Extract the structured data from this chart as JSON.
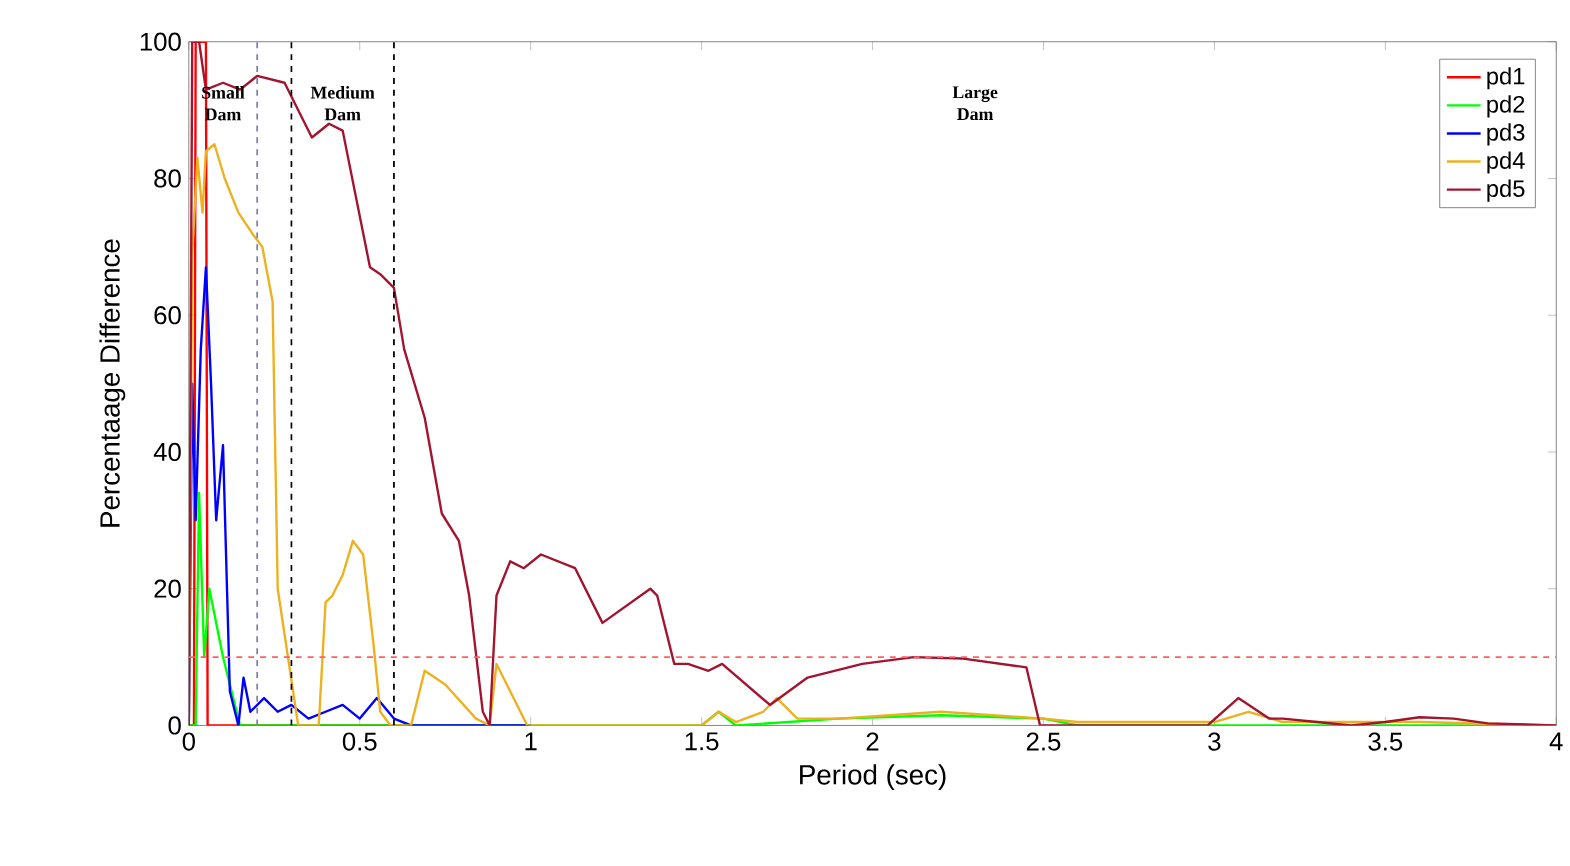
{
  "chart_data": {
    "type": "line",
    "xlabel": "Period (sec)",
    "ylabel": "Percentaage Difference",
    "xlim": [
      0,
      4
    ],
    "ylim": [
      0,
      100
    ],
    "xticks": [
      0,
      0.5,
      1,
      1.5,
      2,
      2.5,
      3,
      3.5,
      4
    ],
    "yticks": [
      0,
      20,
      40,
      60,
      80,
      100
    ],
    "legend": "top right",
    "marker": "none",
    "line_style": "solid",
    "grid": false,
    "series": [
      {
        "name": "pd1",
        "color": "#ff0000",
        "x": [
          0,
          0.015,
          0.02,
          0.05,
          0.055,
          0.1,
          1
        ],
        "values": [
          0,
          0,
          100,
          100,
          0,
          0,
          0
        ]
      },
      {
        "name": "pd2",
        "color": "#00ff00",
        "x": [
          0,
          0.02,
          0.03,
          0.045,
          0.06,
          0.1,
          0.15,
          0.3,
          0.6,
          1.5,
          1.55,
          1.6,
          1.9,
          2.2,
          2.5,
          2.6,
          4
        ],
        "values": [
          0,
          0,
          34,
          10,
          20,
          10,
          0,
          0,
          0,
          0,
          2,
          0,
          1,
          1.5,
          1,
          0,
          0
        ]
      },
      {
        "name": "pd3",
        "color": "#0000ff",
        "x": [
          0,
          0.01,
          0.02,
          0.035,
          0.05,
          0.065,
          0.08,
          0.1,
          0.12,
          0.145,
          0.16,
          0.18,
          0.22,
          0.26,
          0.3,
          0.35,
          0.4,
          0.45,
          0.5,
          0.55,
          0.6,
          0.65,
          1
        ],
        "values": [
          0,
          50,
          30,
          55,
          67,
          50,
          30,
          41,
          5,
          0,
          7,
          2,
          4,
          2,
          3,
          1,
          2,
          3,
          1,
          4,
          1,
          0,
          0
        ]
      },
      {
        "name": "pd4",
        "color": "#edb120",
        "x": [
          0,
          0.01,
          0.025,
          0.04,
          0.05,
          0.075,
          0.105,
          0.145,
          0.185,
          0.215,
          0.245,
          0.26,
          0.32,
          0.38,
          0.4,
          0.42,
          0.45,
          0.48,
          0.51,
          0.54,
          0.56,
          0.59,
          0.65,
          0.69,
          0.75,
          0.84,
          0.88,
          0.9,
          0.99,
          1.5,
          1.55,
          1.6,
          1.68,
          1.72,
          1.78,
          1.9,
          2.2,
          2.5,
          2.6,
          3.0,
          3.1,
          3.2,
          3.6,
          4
        ],
        "values": [
          0,
          69,
          83,
          75,
          84,
          85,
          80,
          75,
          72,
          70,
          62,
          20,
          0,
          0,
          18,
          19,
          22,
          27,
          25,
          12,
          2,
          0,
          0,
          8,
          6,
          1,
          0,
          9,
          0,
          0,
          2,
          0.5,
          2,
          4,
          1,
          1,
          2,
          1,
          0.5,
          0.5,
          2,
          0.5,
          0.5,
          0
        ]
      },
      {
        "name": "pd5",
        "color": "#a2142f",
        "x": [
          0,
          0.01,
          0.03,
          0.05,
          0.1,
          0.15,
          0.2,
          0.28,
          0.36,
          0.41,
          0.45,
          0.53,
          0.56,
          0.6,
          0.63,
          0.69,
          0.74,
          0.79,
          0.82,
          0.86,
          0.88,
          0.9,
          0.94,
          0.98,
          1.03,
          1.13,
          1.21,
          1.35,
          1.37,
          1.42,
          1.46,
          1.52,
          1.56,
          1.7,
          1.81,
          1.97,
          2.12,
          2.26,
          2.45,
          2.49,
          2.98,
          3.07,
          3.16,
          3.2,
          3.3,
          3.4,
          3.5,
          3.6,
          3.7,
          3.8,
          4
        ],
        "values": [
          0,
          100,
          100,
          93,
          94,
          93,
          95,
          94,
          86,
          88,
          87,
          67,
          66,
          64,
          55,
          45,
          31,
          27,
          19,
          2,
          0,
          19,
          24,
          23,
          25,
          23,
          15,
          20,
          19,
          9,
          9,
          8,
          9,
          3,
          7,
          9,
          10,
          9.8,
          8.5,
          0,
          0,
          4,
          1,
          1,
          0.5,
          0,
          0.5,
          1.2,
          1,
          0.3,
          0
        ]
      }
    ],
    "ref_lines": [
      {
        "axis": "y",
        "value": 10,
        "color": "#ff6060",
        "line_style": "dashed"
      },
      {
        "axis": "x",
        "value": 0.2,
        "color": "#8080a0",
        "line_style": "dashed"
      },
      {
        "axis": "x",
        "value": 0.3,
        "color": "#000000",
        "line_style": "dashed"
      },
      {
        "axis": "x",
        "value": 0.6,
        "color": "#000000",
        "line_style": "dashed"
      }
    ],
    "annotations": [
      "Small Dam",
      "Medium Dam",
      "Large Dam"
    ]
  }
}
